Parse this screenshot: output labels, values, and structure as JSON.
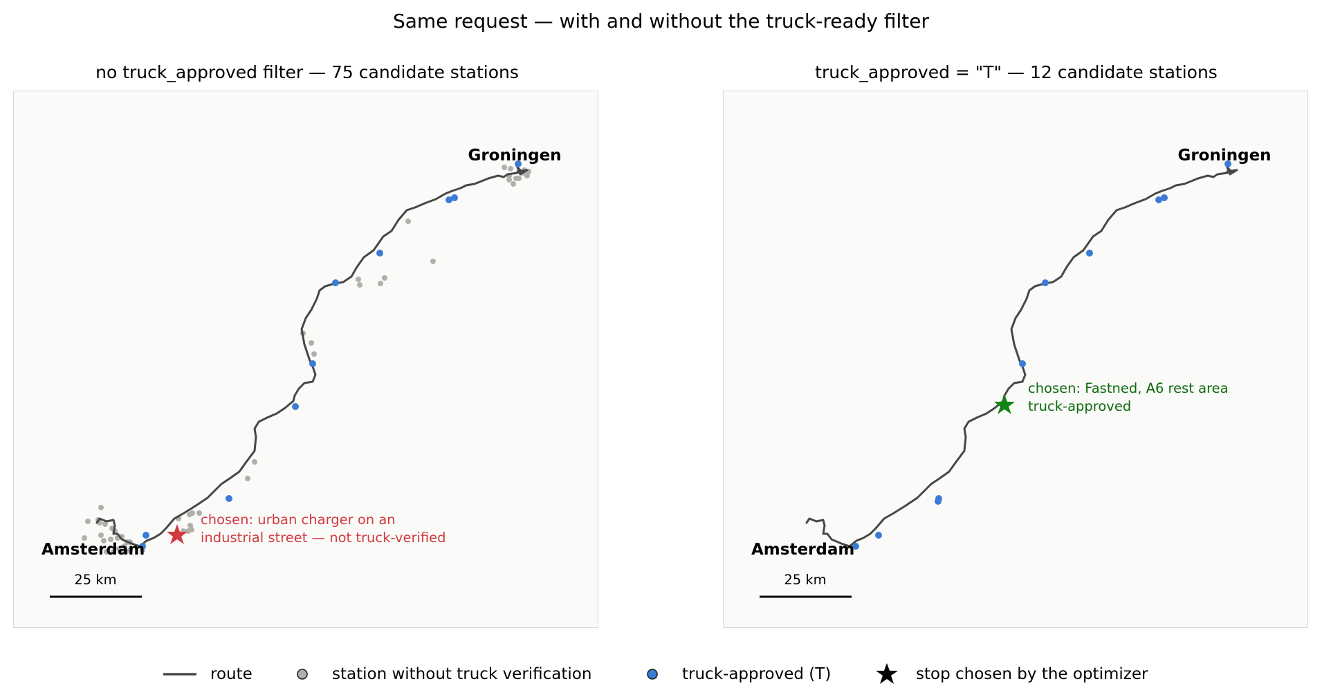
{
  "figure": {
    "title": "Same request — with and without the truck-ready filter"
  },
  "panels": [
    {
      "id": "left",
      "title": "no truck_approved filter — 75 candidate stations",
      "city_labels": {
        "start": "Amsterdam",
        "end": "Groningen"
      },
      "scale_bar": {
        "label": "25 km",
        "distance_km": 25
      },
      "chosen_stop": {
        "annotation_line1": "chosen: urban charger on an",
        "annotation_line2": "industrial street — not truck-verified",
        "truck_approved": false,
        "color": "#d13b40"
      }
    },
    {
      "id": "right",
      "title": "truck_approved = \"T\" — 12 candidate stations",
      "city_labels": {
        "start": "Amsterdam",
        "end": "Groningen"
      },
      "scale_bar": {
        "label": "25 km",
        "distance_km": 25
      },
      "chosen_stop": {
        "annotation_line1": "chosen: Fastned, A6 rest area",
        "annotation_line2": "truck-approved",
        "truck_approved": true,
        "color": "#128512",
        "text_color": "#0e6b0e"
      }
    }
  ],
  "legend": {
    "route": "route",
    "unverified": "station without truck verification",
    "approved": "truck-approved (T)",
    "chosen": "stop chosen by the optimizer"
  },
  "colors": {
    "route": "#474747",
    "unverified_station": "#b0afab",
    "truck_approved_station": "#3a7bd5",
    "panel_background": "#fafaf9"
  }
}
